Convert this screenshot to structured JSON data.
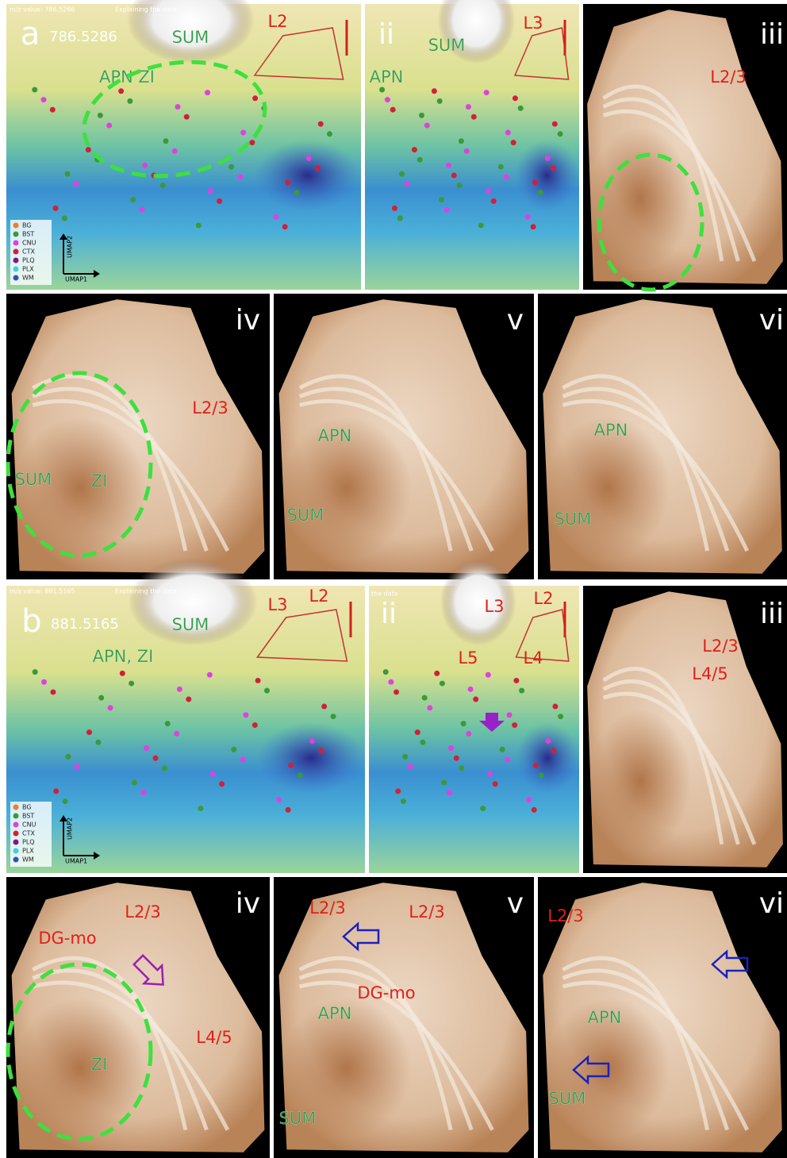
{
  "panels": [
    {
      "letter": "a",
      "mz": "786.5286",
      "header": "m/z value: 786.5286",
      "subheader": "Explaining the data",
      "labels": [
        "SUM",
        "APN ZI",
        "L2"
      ],
      "legend": [
        "BG",
        "BST",
        "CNU",
        "CTX",
        "PLQ",
        "PLX",
        "WM"
      ],
      "x_axis": "UMAP1",
      "y_axis": "UMAP2"
    },
    {
      "numeral": "ii",
      "labels": [
        "SUM",
        "APN",
        "L3"
      ]
    },
    {
      "numeral": "iii",
      "labels": [
        "L2/3"
      ]
    },
    {
      "numeral": "iv",
      "labels": [
        "L2/3",
        "SUM",
        "ZI"
      ]
    },
    {
      "numeral": "v",
      "labels": [
        "APN",
        "SUM"
      ]
    },
    {
      "numeral": "vi",
      "labels": [
        "APN",
        "SUM"
      ]
    },
    {
      "letter": "b",
      "mz": "881.5165",
      "header": "m/z value: 881.5165",
      "subheader": "Explaining the data",
      "labels": [
        "SUM",
        "APN, ZI",
        "L3",
        "L2"
      ],
      "legend": [
        "BG",
        "BST",
        "CNU",
        "CTX",
        "PLQ",
        "PLX",
        "WM"
      ],
      "x_axis": "UMAP1",
      "y_axis": "UMAP2"
    },
    {
      "numeral": "ii",
      "subheader": "the data",
      "labels": [
        "L3",
        "L2",
        "L5",
        "L4"
      ]
    },
    {
      "numeral": "iii",
      "labels": [
        "L2/3",
        "L4/5"
      ]
    },
    {
      "numeral": "iv",
      "labels": [
        "L2/3",
        "DG-mo",
        "L4/5",
        "ZI"
      ]
    },
    {
      "numeral": "v",
      "labels": [
        "L2/3",
        "L2/3",
        "DG-mo",
        "APN",
        "SUM"
      ]
    },
    {
      "numeral": "vi",
      "labels": [
        "L2/3",
        "APN",
        "SUM"
      ]
    }
  ]
}
